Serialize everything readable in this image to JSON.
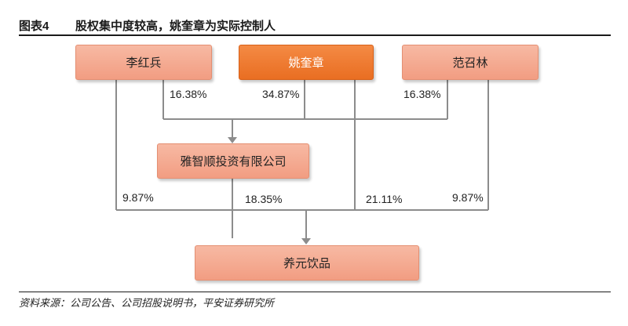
{
  "header": {
    "figure_number": "图表4",
    "title": "股权集中度较高，姚奎章为实际控制人"
  },
  "nodes": {
    "li_hongbing": "李红兵",
    "yao_kuizhang": "姚奎章",
    "fan_zhaolin": "范召林",
    "yazhishun": "雅智顺投资有限公司",
    "yangyuan": "养元饮品"
  },
  "edges": {
    "li_to_yazhishun": "16.38%",
    "yao_to_yazhishun": "34.87%",
    "fan_to_yazhishun": "16.38%",
    "li_to_yangyuan": "9.87%",
    "yazhishun_to_yangyuan": "18.35%",
    "yao_to_yangyuan": "21.11%",
    "fan_to_yangyuan": "9.87%"
  },
  "colors": {
    "primary_box": "#e96e22",
    "secondary_box": "#f29d82",
    "connector": "#8c8c8c"
  },
  "footer": {
    "source": "资料来源：公司公告、公司招股说明书，平安证券研究所"
  }
}
